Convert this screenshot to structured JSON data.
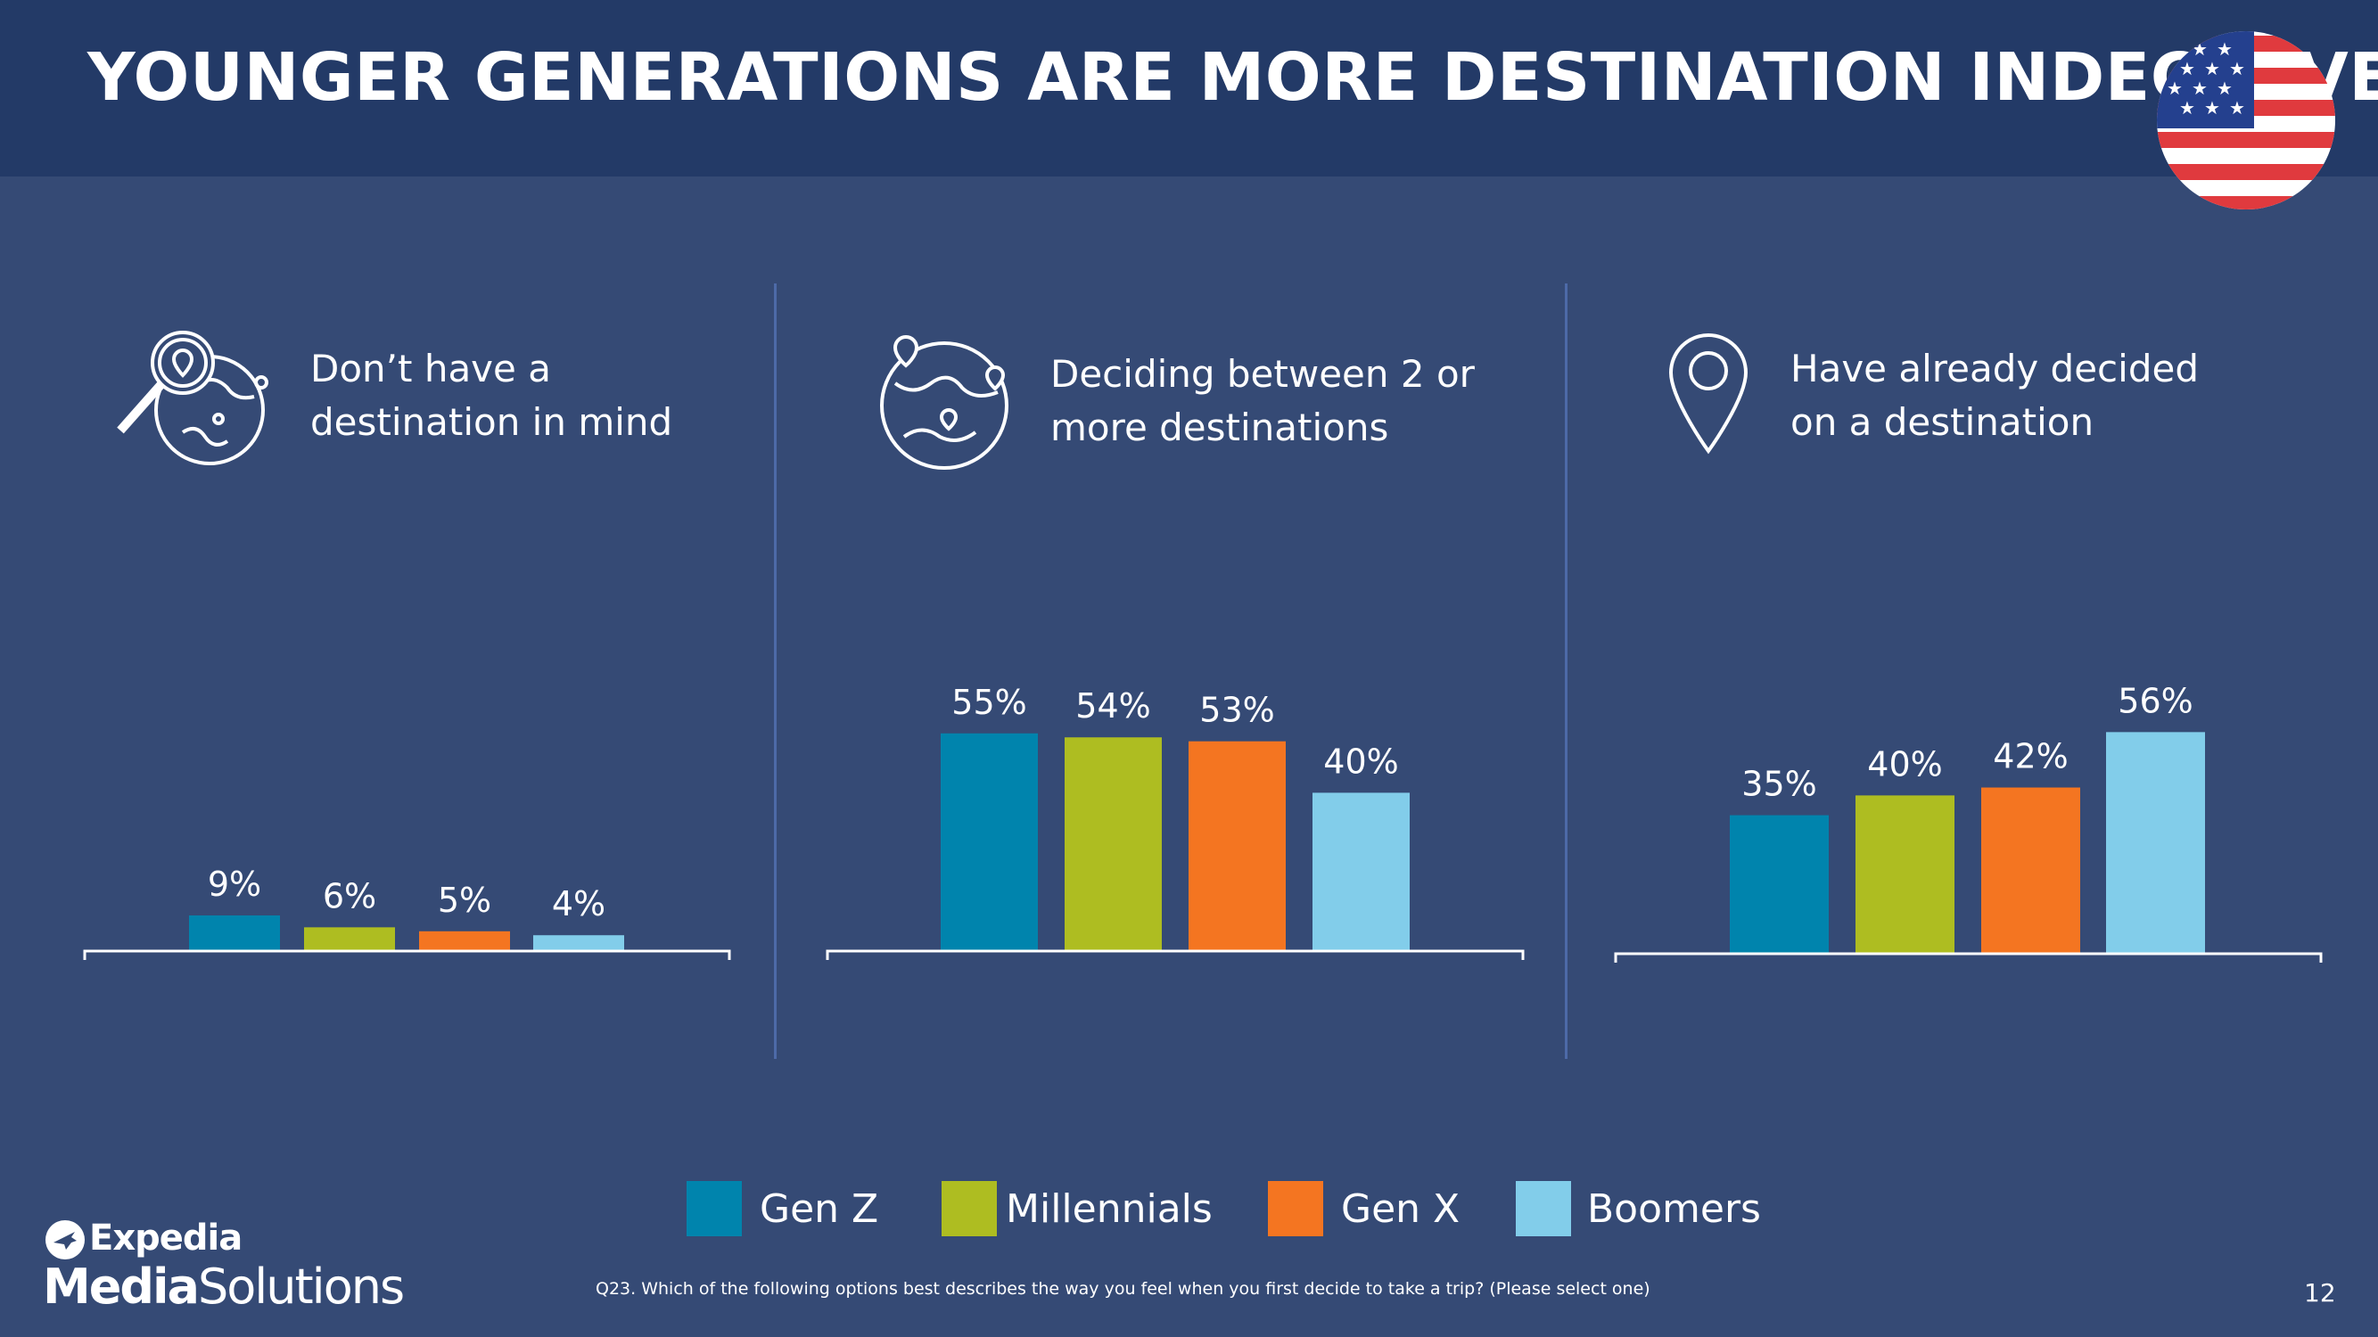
{
  "header": {
    "title": "YOUNGER GENERATIONS ARE MORE DESTINATION INDECISIVE"
  },
  "icons": {
    "flag": "us-flag-icon",
    "panel1": "globe-search-icon",
    "panel2": "globe-pins-icon",
    "panel3": "location-pin-icon"
  },
  "colors": {
    "gen_z": "#0084ad",
    "millennials": "#aebd21",
    "gen_x": "#f47521",
    "boomers": "#82cdea",
    "background": "#354a75",
    "header": "#233a67"
  },
  "chart_data": [
    {
      "type": "bar",
      "title": "Don’t have a destination in mind",
      "title_lines": [
        "Don’t have a",
        "destination in mind"
      ],
      "categories": [
        "Gen Z",
        "Millennials",
        "Gen X",
        "Boomers"
      ],
      "values": [
        9,
        6,
        5,
        4
      ],
      "labels": [
        "9%",
        "6%",
        "5%",
        "4%"
      ]
    },
    {
      "type": "bar",
      "title": "Deciding between 2 or more destinations",
      "title_lines": [
        "Deciding between 2 or",
        "more destinations"
      ],
      "categories": [
        "Gen Z",
        "Millennials",
        "Gen X",
        "Boomers"
      ],
      "values": [
        55,
        54,
        53,
        40
      ],
      "labels": [
        "55%",
        "54%",
        "53%",
        "40%"
      ]
    },
    {
      "type": "bar",
      "title": "Have already decided on a destination",
      "title_lines": [
        "Have already decided",
        "on a destination"
      ],
      "categories": [
        "Gen Z",
        "Millennials",
        "Gen X",
        "Boomers"
      ],
      "values": [
        35,
        40,
        42,
        56
      ],
      "labels": [
        "35%",
        "40%",
        "42%",
        "56%"
      ]
    }
  ],
  "legend": {
    "placement": "bottom",
    "items": [
      {
        "label": "Gen Z",
        "color": "#0084ad"
      },
      {
        "label": "Millennials",
        "color": "#aebd21"
      },
      {
        "label": "Gen X",
        "color": "#f47521"
      },
      {
        "label": "Boomers",
        "color": "#82cdea"
      }
    ]
  },
  "logo": {
    "line1": "Expedia",
    "line2_bold": "Media",
    "line2_regular": "Solutions"
  },
  "footnote": "Q23. Which of the following options best describes the way you feel when you first decide to take a trip? (Please select one)",
  "page_number": "12"
}
